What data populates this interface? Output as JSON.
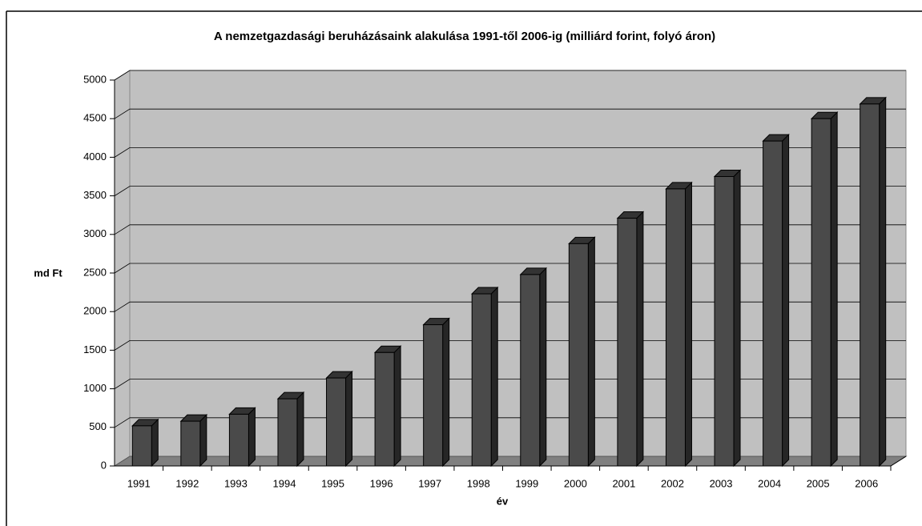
{
  "chart_data": {
    "type": "bar",
    "title": "A nemzetgazdasági beruházásaink alakulása 1991-től 2006-ig (milliárd forint, folyó áron)",
    "x_label": "év",
    "y_label": "md Ft",
    "categories": [
      "1991",
      "1992",
      "1993",
      "1994",
      "1995",
      "1996",
      "1997",
      "1998",
      "1999",
      "2000",
      "2001",
      "2002",
      "2003",
      "2004",
      "2005",
      "2006"
    ],
    "values": [
      520,
      580,
      670,
      870,
      1140,
      1470,
      1830,
      2230,
      2480,
      2880,
      3210,
      3590,
      3750,
      4210,
      4500,
      4690
    ],
    "color": "#4a4a4a",
    "ylim": [
      0,
      5000
    ],
    "yticks": [
      0,
      500,
      1000,
      1500,
      2000,
      2500,
      3000,
      3500,
      4000,
      4500,
      5000
    ],
    "grid": true
  }
}
